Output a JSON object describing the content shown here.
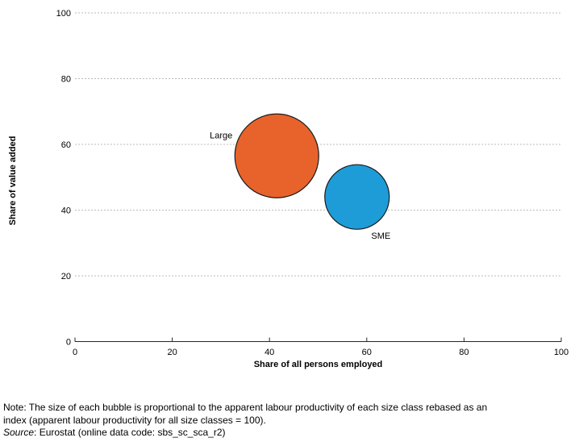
{
  "chart_data": {
    "type": "scatter",
    "subtype": "bubble",
    "title": "",
    "xlabel": "Share of all persons employed",
    "ylabel": "Share of value added",
    "xlim": [
      0,
      100
    ],
    "ylim": [
      0,
      100
    ],
    "xticks": [
      0,
      20,
      40,
      60,
      80,
      100
    ],
    "yticks": [
      0,
      20,
      40,
      60,
      80,
      100
    ],
    "grid": "horizontal-dashed",
    "colors": {
      "grid": "#bbbbbb",
      "axis": "#262626",
      "bubble_stroke": "#1a1a1a"
    },
    "series": [
      {
        "name": "Large",
        "x": 41.5,
        "y": 56.5,
        "radius_px": 52,
        "color": "#e8632c",
        "label_position": "left"
      },
      {
        "name": "SME",
        "x": 58,
        "y": 44,
        "radius_px": 40,
        "color": "#1e9cd8",
        "label_position": "below-right"
      }
    ]
  },
  "note": {
    "line1": "Note: The size of each bubble is proportional to the apparent labour productivity of each size class rebased as an",
    "line2": "index (apparent labour productivity for all size classes = 100).",
    "source_label": "Source",
    "source_text": ": Eurostat (online data code: sbs_sc_sca_r2)"
  }
}
